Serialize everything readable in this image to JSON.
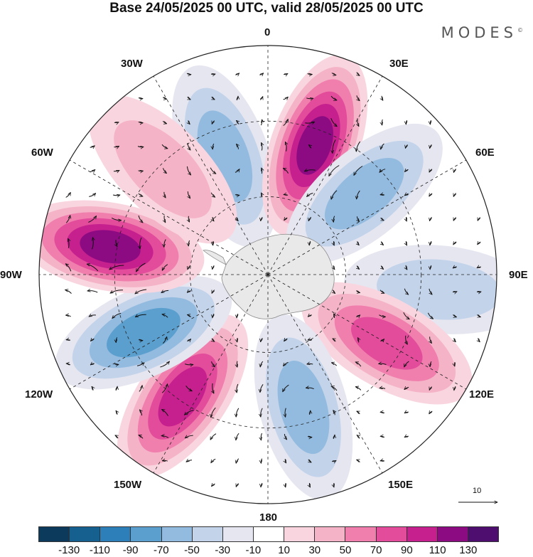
{
  "title": "Base 24/05/2025 00 UTC, valid 28/05/2025 00 UTC",
  "logo": "MODES",
  "logo_mark": "©",
  "longitude_labels": {
    "deg0": "0",
    "deg30e": "30E",
    "deg60e": "60E",
    "deg90e": "90E",
    "deg120e": "120E",
    "deg150e": "150E",
    "deg180": "180",
    "deg150w": "150W",
    "deg120w": "120W",
    "deg90w": "90W",
    "deg60w": "60W",
    "deg30w": "30W"
  },
  "vector_scale_label": "10",
  "colorbar": {
    "colors": [
      "#0b3a5c",
      "#15608f",
      "#2c7fb8",
      "#5b9fcf",
      "#93bbdf",
      "#c3d3ea",
      "#e6e6f1",
      "#ffffff",
      "#f9d6df",
      "#f5b3c8",
      "#f07fae",
      "#e24c9b",
      "#c6208e",
      "#8c0a82",
      "#4d0e6f"
    ],
    "tick_labels": [
      "-130",
      "-110",
      "-90",
      "-70",
      "-50",
      "-30",
      "-10",
      "10",
      "30",
      "50",
      "70",
      "90",
      "110",
      "130"
    ]
  },
  "anomaly_centers": [
    {
      "lon": -20,
      "colat": 0.55,
      "value": -60
    },
    {
      "lon": 20,
      "colat": 0.6,
      "value": 110
    },
    {
      "lon": 50,
      "colat": 0.55,
      "value": -55
    },
    {
      "lon": 95,
      "colat": 0.75,
      "value": -35
    },
    {
      "lon": 120,
      "colat": 0.6,
      "value": 70
    },
    {
      "lon": 165,
      "colat": 0.6,
      "value": -65
    },
    {
      "lon": -145,
      "colat": 0.65,
      "value": 100
    },
    {
      "lon": -115,
      "colat": 0.6,
      "value": -80
    },
    {
      "lon": -80,
      "colat": 0.7,
      "value": 120
    },
    {
      "lon": -45,
      "colat": 0.65,
      "value": 30
    }
  ]
}
